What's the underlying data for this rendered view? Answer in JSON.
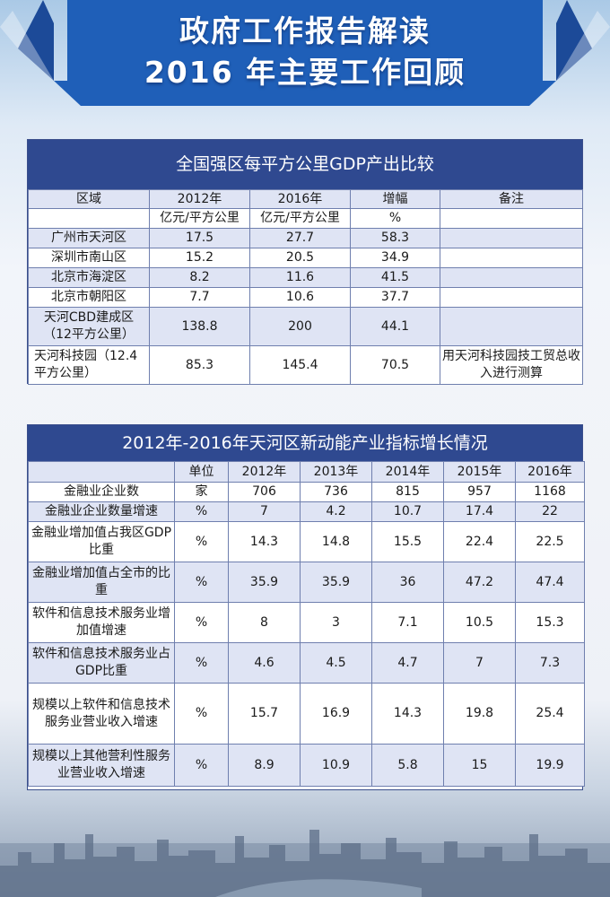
{
  "banner": {
    "line1": "政府工作报告解读",
    "line2": "2016 年主要工作回顾",
    "color": "#1f5fb8"
  },
  "table1": {
    "title": "全国强区每平方公里GDP产出比较",
    "headers": [
      "区域",
      "2012年",
      "2016年",
      "增幅",
      "备注"
    ],
    "units": [
      "",
      "亿元/平方公里",
      "亿元/平方公里",
      "%",
      ""
    ],
    "rows": [
      [
        "广州市天河区",
        "17.5",
        "27.7",
        "58.3",
        ""
      ],
      [
        "深圳市南山区",
        "15.2",
        "20.5",
        "34.9",
        ""
      ],
      [
        "北京市海淀区",
        "8.2",
        "11.6",
        "41.5",
        ""
      ],
      [
        "北京市朝阳区",
        "7.7",
        "10.6",
        "37.7",
        ""
      ],
      [
        "天河CBD建成区（12平方公里）",
        "138.8",
        "200",
        "44.1",
        ""
      ],
      [
        "天河科技园（12.4平方公里）",
        "85.3",
        "145.4",
        "70.5",
        "用天河科技园技工贸总收入进行测算"
      ]
    ]
  },
  "table2": {
    "title": "2012年-2016年天河区新动能产业指标增长情况",
    "headers": [
      "",
      "单位",
      "2012年",
      "2013年",
      "2014年",
      "2015年",
      "2016年"
    ],
    "rows": [
      [
        "金融业企业数",
        "家",
        "706",
        "736",
        "815",
        "957",
        "1168"
      ],
      [
        "金融业企业数量增速",
        "%",
        "7",
        "4.2",
        "10.7",
        "17.4",
        "22"
      ],
      [
        "金融业增加值占我区GDP比重",
        "%",
        "14.3",
        "14.8",
        "15.5",
        "22.4",
        "22.5"
      ],
      [
        "金融业增加值占全市的比重",
        "%",
        "35.9",
        "35.9",
        "36",
        "47.2",
        "47.4"
      ],
      [
        "软件和信息技术服务业增加值增速",
        "%",
        "8",
        "3",
        "7.1",
        "10.5",
        "15.3"
      ],
      [
        "软件和信息技术服务业占GDP比重",
        "%",
        "4.6",
        "4.5",
        "4.7",
        "7",
        "7.3"
      ],
      [
        "规模以上软件和信息技术服务业营业收入增速",
        "%",
        "15.7",
        "16.9",
        "14.3",
        "19.8",
        "25.4"
      ],
      [
        "规模以上其他营利性服务业营业收入增速",
        "%",
        "8.9",
        "10.9",
        "5.8",
        "15",
        "19.9"
      ]
    ]
  }
}
